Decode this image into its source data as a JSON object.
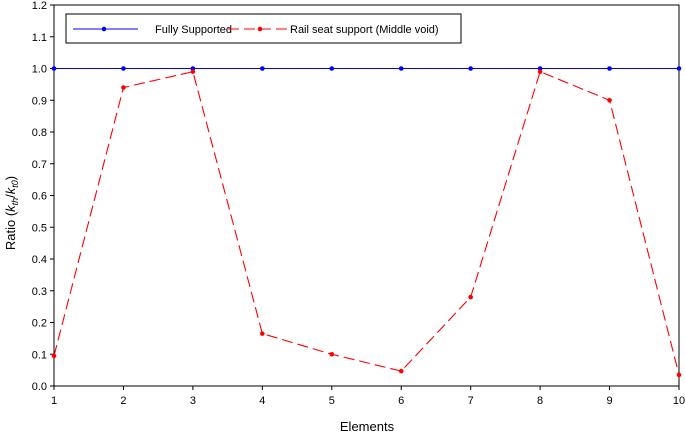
{
  "chart_data": {
    "type": "line",
    "xlabel": "Elements",
    "ylabel": {
      "prefix": "Ratio (",
      "k1": "k",
      "k1_sub": "th",
      "slash": "/",
      "k2": "k",
      "k2_sub": "t0",
      "suffix": ")"
    },
    "xlim": [
      1,
      10
    ],
    "ylim": [
      0,
      1.2
    ],
    "x_ticks": [
      "1",
      "2",
      "3",
      "4",
      "5",
      "6",
      "7",
      "8",
      "9",
      "10"
    ],
    "y_ticks": [
      "0.0",
      "0.1",
      "0.2",
      "0.3",
      "0.4",
      "0.5",
      "0.6",
      "0.7",
      "0.8",
      "0.9",
      "1.0",
      "1.1",
      "1.2"
    ],
    "x": [
      1,
      2,
      3,
      4,
      5,
      6,
      7,
      8,
      9,
      10
    ],
    "grid": false,
    "legend_position": "top-left",
    "series": [
      {
        "name": "Fully Supported",
        "color": "#0000ff",
        "dash": "solid",
        "values": [
          1.0,
          1.0,
          1.0,
          1.0,
          1.0,
          1.0,
          1.0,
          1.0,
          1.0,
          1.0
        ]
      },
      {
        "name": "Rail seat support (Middle void)",
        "color": "#ff0000",
        "dash": "dashed",
        "values": [
          0.095,
          0.94,
          0.99,
          0.165,
          0.1,
          0.047,
          0.28,
          0.99,
          0.9,
          0.035
        ]
      }
    ]
  }
}
